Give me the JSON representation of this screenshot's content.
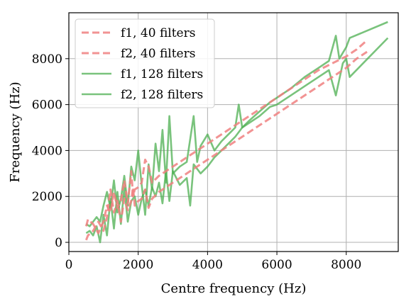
{
  "chart_data": {
    "type": "line",
    "title": "",
    "xlabel": "Centre frequency (Hz)",
    "ylabel": "Frequency (Hz)",
    "xlim": [
      0,
      9500
    ],
    "ylim": [
      -400,
      10000
    ],
    "x_ticks": [
      0,
      2000,
      4000,
      6000,
      8000
    ],
    "x_tick_labels": [
      "0",
      "2000",
      "4000",
      "6000",
      "8000"
    ],
    "y_ticks": [
      0,
      2000,
      4000,
      6000,
      8000
    ],
    "y_tick_labels": [
      "0",
      "2000",
      "4000",
      "6000",
      "8000"
    ],
    "grid": true,
    "legend_position": "top-left",
    "series": [
      {
        "name": "f1, 40 filters",
        "color": "#f08080",
        "style": "dashed",
        "x": [
          500,
          550,
          700,
          850,
          1000,
          1100,
          1200,
          1300,
          1400,
          1500,
          1600,
          1700,
          1800,
          1850,
          1900,
          2000,
          2100,
          2200,
          2300,
          2400,
          2600,
          2800,
          3000,
          3300,
          3600,
          4000,
          4400,
          4800,
          5200,
          5600,
          6000,
          6400,
          6800,
          7200,
          7600,
          8000,
          8300,
          8600
        ],
        "y": [
          700,
          1000,
          800,
          400,
          900,
          1600,
          1300,
          2200,
          1500,
          1800,
          2700,
          1700,
          3100,
          2000,
          2300,
          2400,
          2600,
          3600,
          3300,
          2600,
          2900,
          3100,
          3300,
          3600,
          3900,
          4300,
          4700,
          5100,
          5500,
          5900,
          6300,
          6700,
          7100,
          7500,
          7800,
          8100,
          8400,
          8800
        ]
      },
      {
        "name": "f2, 40 filters",
        "color": "#f08080",
        "style": "dashed",
        "x": [
          500,
          550,
          700,
          850,
          1000,
          1100,
          1200,
          1300,
          1400,
          1500,
          1600,
          1700,
          1800,
          1850,
          1900,
          2000,
          2100,
          2200,
          2300,
          2400,
          2600,
          2800,
          3000,
          3300,
          3600,
          4000,
          4400,
          4800,
          5200,
          5600,
          6000,
          6400,
          6800,
          7200,
          7600,
          8000,
          8300,
          8600
        ],
        "y": [
          100,
          300,
          500,
          900,
          500,
          1100,
          2300,
          1300,
          1800,
          900,
          1900,
          1400,
          1800,
          2400,
          1600,
          1800,
          1900,
          2300,
          1500,
          1900,
          2200,
          2400,
          2600,
          2900,
          3200,
          3600,
          4000,
          4400,
          4800,
          5200,
          5600,
          6000,
          6400,
          6800,
          7200,
          7600,
          8000,
          8300
        ]
      },
      {
        "name": "f1, 128 filters",
        "color": "#4caf50",
        "style": "solid",
        "x": [
          500,
          600,
          700,
          800,
          900,
          1000,
          1100,
          1200,
          1300,
          1400,
          1500,
          1600,
          1700,
          1800,
          1900,
          2000,
          2100,
          2200,
          2300,
          2400,
          2500,
          2600,
          2700,
          2800,
          2900,
          3000,
          3200,
          3400,
          3600,
          3700,
          3800,
          4000,
          4200,
          4400,
          4600,
          4800,
          4900,
          5000,
          5200,
          5500,
          5800,
          6000,
          6400,
          6800,
          7200,
          7500,
          7700,
          7800,
          8000,
          8100,
          9200
        ],
        "y": [
          800,
          700,
          900,
          1100,
          900,
          1600,
          2200,
          1500,
          2700,
          1300,
          1900,
          2900,
          1600,
          3300,
          2700,
          4000,
          2500,
          1200,
          3400,
          2300,
          4300,
          3100,
          4900,
          2600,
          5500,
          3000,
          3300,
          3500,
          5500,
          3500,
          4200,
          4700,
          4000,
          4400,
          4700,
          5000,
          6000,
          5000,
          5300,
          5700,
          6100,
          6300,
          6700,
          7200,
          7600,
          7900,
          9000,
          8000,
          8500,
          8900,
          9600
        ]
      },
      {
        "name": "f2, 128 filters",
        "color": "#4caf50",
        "style": "solid",
        "x": [
          500,
          600,
          700,
          800,
          900,
          1000,
          1100,
          1200,
          1300,
          1400,
          1500,
          1600,
          1700,
          1800,
          1900,
          2000,
          2100,
          2200,
          2300,
          2400,
          2500,
          2600,
          2700,
          2800,
          2900,
          3000,
          3200,
          3400,
          3500,
          3600,
          3800,
          4000,
          4200,
          4400,
          4600,
          4800,
          5000,
          5200,
          5500,
          5800,
          6000,
          6400,
          6800,
          7200,
          7500,
          7700,
          7900,
          8000,
          8100,
          9200
        ],
        "y": [
          400,
          500,
          300,
          700,
          0,
          1200,
          300,
          1900,
          600,
          2200,
          800,
          2400,
          900,
          1800,
          2000,
          1200,
          1900,
          2300,
          1600,
          2400,
          2000,
          2600,
          1700,
          3100,
          1800,
          3100,
          2500,
          2800,
          1600,
          3400,
          3000,
          3300,
          3700,
          4000,
          4300,
          4600,
          5000,
          5200,
          5500,
          5900,
          6000,
          6400,
          6800,
          7200,
          7500,
          6400,
          7800,
          8000,
          7200,
          8900
        ]
      }
    ]
  }
}
